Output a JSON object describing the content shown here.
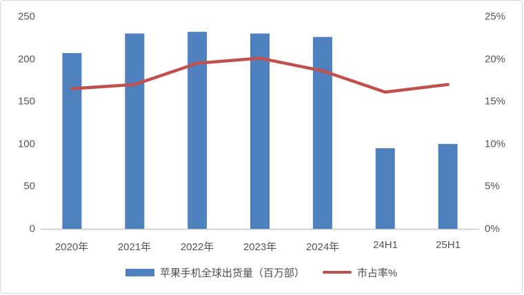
{
  "chart_data": {
    "type": "bar",
    "subtype": "combo-bar-line",
    "title": "",
    "categories": [
      "2020年",
      "2021年",
      "2022年",
      "2023年",
      "2024年",
      "24H1",
      "25H1"
    ],
    "series": [
      {
        "name": "苹果手机全球出货量（百万部）",
        "type": "bar",
        "axis": "left",
        "color": "#4e81bd",
        "values": [
          207,
          230,
          232,
          230,
          226,
          95,
          100
        ]
      },
      {
        "name": "市占率%",
        "type": "line",
        "axis": "right",
        "color": "#c0504d",
        "values": [
          16.5,
          17.0,
          19.5,
          20.1,
          18.6,
          16.1,
          17.0
        ]
      }
    ],
    "left_axis": {
      "min": 0,
      "max": 250,
      "ticks": [
        "250",
        "200",
        "150",
        "100",
        "50",
        "0"
      ]
    },
    "right_axis": {
      "min": 0,
      "max": 25,
      "ticks": [
        "25%",
        "20%",
        "15%",
        "10%",
        "5%",
        "0%"
      ]
    },
    "grid": "off",
    "legend_position": "bottom",
    "axis_line_color": "#c6c6c6",
    "text_color": "#555555"
  }
}
